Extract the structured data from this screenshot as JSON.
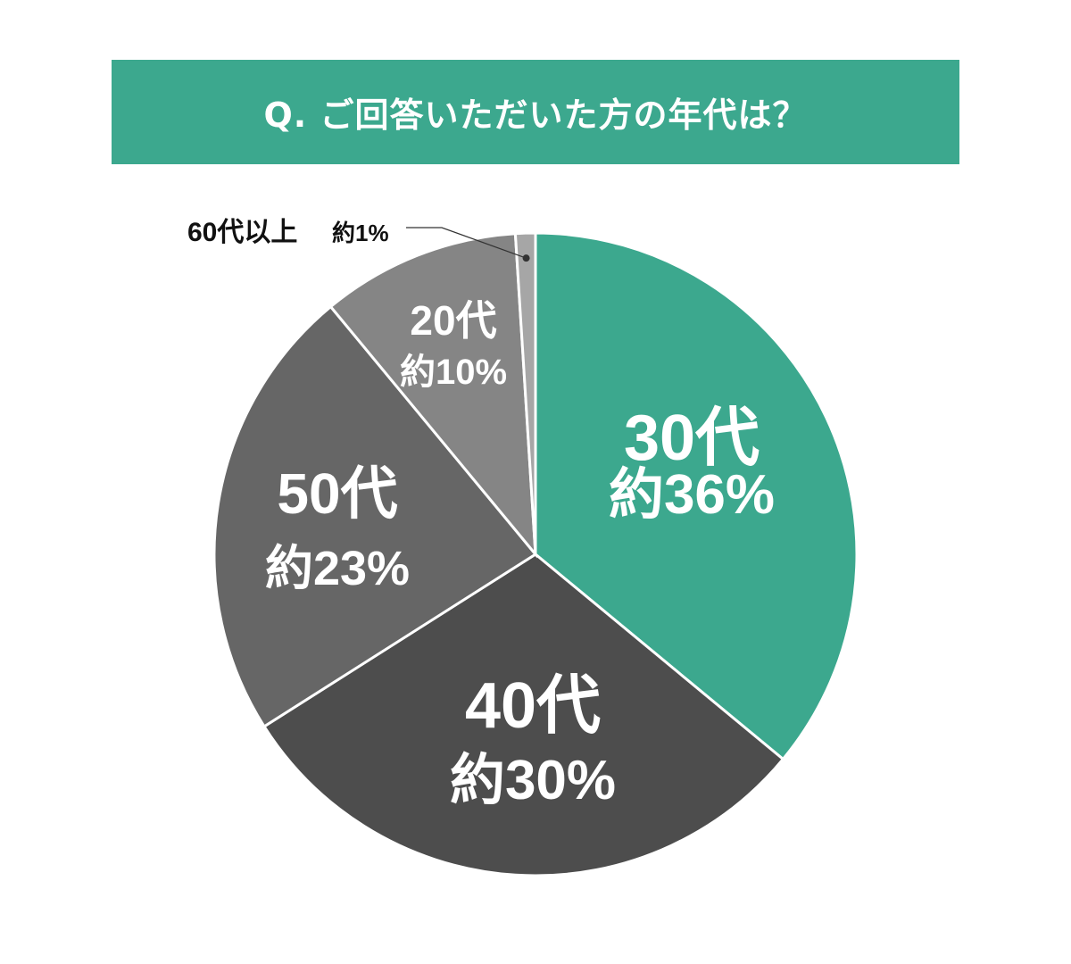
{
  "chart_data": {
    "type": "pie",
    "title": "Q. ご回答いただいた方の年代は？",
    "start": "top",
    "direction": "clockwise",
    "slices": [
      {
        "label": "30代",
        "value": 36,
        "value_label": "約36%",
        "color": "#3ca88e"
      },
      {
        "label": "40代",
        "value": 30,
        "value_label": "約30%",
        "color": "#4d4d4d"
      },
      {
        "label": "50代",
        "value": 23,
        "value_label": "約23%",
        "color": "#666666"
      },
      {
        "label": "20代",
        "value": 10,
        "value_label": "約10%",
        "color": "#858585"
      },
      {
        "label": "60代以上",
        "value": 1,
        "value_label": "約1%",
        "color": "#a6a6a6"
      }
    ]
  }
}
